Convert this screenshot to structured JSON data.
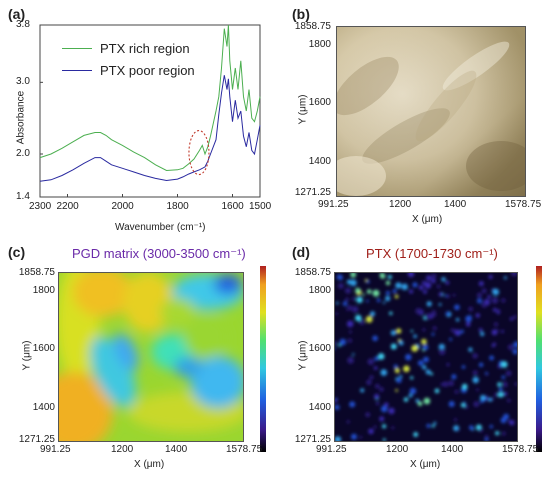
{
  "panels": {
    "a": {
      "letter": "(a)"
    },
    "b": {
      "letter": "(b)"
    },
    "c": {
      "letter": "(c)",
      "title": "PGD matrix (3000-3500 cm⁻¹)",
      "title_color": "#6a2aa8"
    },
    "d": {
      "letter": "(d)",
      "title": "PTX (1700-1730 cm⁻¹)",
      "title_color": "#a0201a"
    }
  },
  "map_axes": {
    "xlabel": "X (μm)",
    "ylabel": "Y (μm)",
    "x_ticks": [
      "991.25",
      "1200",
      "1400",
      "1578.75"
    ],
    "y_ticks": [
      "1858.75",
      "1800",
      "1600",
      "1400",
      "1271.25"
    ]
  },
  "colors": {
    "rich": "#4caf50",
    "poor": "#2a2aa0",
    "annotation": "#c0392b"
  },
  "chart_data": {
    "type": "line",
    "title": "",
    "xlabel": "Wavenumber (cm⁻¹)",
    "ylabel": "Absorbance",
    "xlim": [
      2300,
      1500
    ],
    "ylim": [
      1.4,
      3.8
    ],
    "x_ticks": [
      "2300",
      "2200",
      "2000",
      "1800",
      "1600",
      "1500"
    ],
    "y_ticks": [
      "3.8",
      "3.0",
      "2.0",
      "1.4"
    ],
    "legend_placement": "top-left",
    "series": [
      {
        "name": "PTX rich region",
        "color": "#4caf50",
        "x": [
          2300,
          2260,
          2220,
          2180,
          2140,
          2100,
          2080,
          2060,
          2040,
          2000,
          1960,
          1920,
          1880,
          1840,
          1800,
          1780,
          1760,
          1740,
          1720,
          1710,
          1700,
          1690,
          1680,
          1660,
          1650,
          1640,
          1630,
          1620,
          1615,
          1610,
          1600,
          1590,
          1580,
          1570,
          1560,
          1550,
          1540,
          1530,
          1520,
          1510,
          1500
        ],
        "values": [
          1.95,
          2.0,
          2.08,
          2.17,
          2.26,
          2.3,
          2.3,
          2.26,
          2.2,
          2.12,
          2.03,
          1.95,
          1.85,
          1.77,
          1.78,
          1.8,
          1.86,
          1.93,
          2.05,
          2.12,
          2.0,
          2.1,
          2.25,
          2.6,
          2.8,
          3.2,
          3.75,
          3.5,
          3.8,
          3.3,
          2.9,
          3.2,
          2.9,
          3.3,
          2.8,
          2.6,
          2.9,
          2.5,
          2.45,
          2.6,
          2.8
        ]
      },
      {
        "name": "PTX poor region",
        "color": "#2a2aa0",
        "x": [
          2300,
          2260,
          2220,
          2180,
          2140,
          2100,
          2080,
          2060,
          2040,
          2000,
          1960,
          1920,
          1880,
          1840,
          1800,
          1780,
          1760,
          1740,
          1720,
          1700,
          1690,
          1680,
          1660,
          1650,
          1640,
          1630,
          1620,
          1615,
          1610,
          1600,
          1590,
          1580,
          1570,
          1560,
          1550,
          1540,
          1530,
          1520,
          1510,
          1500
        ],
        "values": [
          1.62,
          1.64,
          1.7,
          1.78,
          1.87,
          1.95,
          1.95,
          1.9,
          1.85,
          1.8,
          1.75,
          1.7,
          1.66,
          1.63,
          1.65,
          1.68,
          1.72,
          1.75,
          1.78,
          1.82,
          1.9,
          2.0,
          2.2,
          2.55,
          2.85,
          3.1,
          2.9,
          3.05,
          2.8,
          2.45,
          2.75,
          2.5,
          2.6,
          2.25,
          2.1,
          2.3,
          2.05,
          2.0,
          2.2,
          2.4
        ]
      }
    ]
  }
}
